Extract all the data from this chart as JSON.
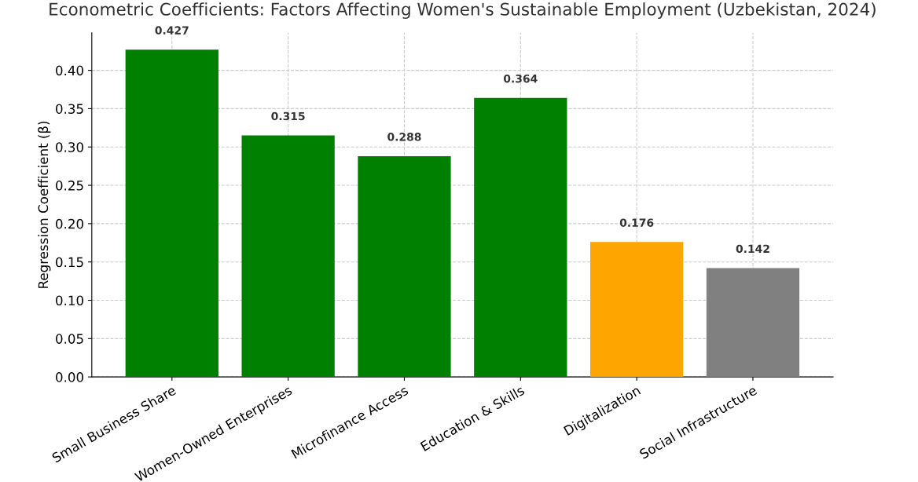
{
  "chart_data": {
    "type": "bar",
    "title": "Econometric Coefficients: Factors Affecting Women's Sustainable Employment (Uzbekistan, 2024)",
    "ylabel": "Regression Coefficient (β)",
    "categories": [
      "Small Business Share",
      "Women-Owned Enterprises",
      "Microfinance Access",
      "Education & Skills",
      "Digitalization",
      "Social Infrastructure"
    ],
    "values": [
      0.427,
      0.315,
      0.288,
      0.364,
      0.176,
      0.142
    ],
    "colors": [
      "#008000",
      "#008000",
      "#008000",
      "#008000",
      "#ffa500",
      "#808080"
    ],
    "ylim": [
      0,
      0.449
    ],
    "yticks": [
      {
        "value": 0,
        "label": "0.00"
      },
      {
        "value": 0.05,
        "label": "0.05"
      },
      {
        "value": 0.1,
        "label": "0.10"
      },
      {
        "value": 0.15,
        "label": "0.15"
      },
      {
        "value": 0.2,
        "label": "0.20"
      },
      {
        "value": 0.25,
        "label": "0.25"
      },
      {
        "value": 0.3,
        "label": "0.30"
      },
      {
        "value": 0.35,
        "label": "0.35"
      },
      {
        "value": 0.4,
        "label": "0.40"
      }
    ],
    "grid": true,
    "data_labels": true
  }
}
